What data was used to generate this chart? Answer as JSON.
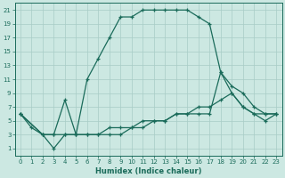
{
  "xlabel": "Humidex (Indice chaleur)",
  "background_color": "#cce8e2",
  "grid_color": "#a8ccc6",
  "line_color": "#1a6b5a",
  "xlim": [
    -0.5,
    23.5
  ],
  "ylim": [
    0,
    22
  ],
  "xticks": [
    0,
    1,
    2,
    3,
    4,
    5,
    6,
    7,
    8,
    9,
    10,
    11,
    12,
    13,
    14,
    15,
    16,
    17,
    18,
    19,
    20,
    21,
    22,
    23
  ],
  "yticks": [
    1,
    3,
    5,
    7,
    9,
    11,
    13,
    15,
    17,
    19,
    21
  ],
  "curve1_x": [
    0,
    1,
    2,
    3,
    4,
    5,
    6,
    7,
    8,
    9,
    10,
    11,
    12,
    13,
    14,
    15,
    16,
    17,
    18,
    19,
    20,
    21,
    22,
    23
  ],
  "curve1_y": [
    6,
    4,
    3,
    3,
    8,
    3,
    11,
    14,
    17,
    20,
    20,
    21,
    21,
    21,
    21,
    21,
    20,
    19,
    12,
    10,
    9,
    7,
    6,
    6
  ],
  "curve2_x": [
    0,
    2,
    3,
    4,
    5,
    6,
    7,
    8,
    9,
    10,
    11,
    12,
    13,
    14,
    15,
    16,
    17,
    18,
    19,
    20,
    21,
    22,
    23
  ],
  "curve2_y": [
    6,
    3,
    3,
    3,
    3,
    3,
    3,
    3,
    3,
    4,
    4,
    5,
    5,
    6,
    6,
    7,
    7,
    8,
    9,
    7,
    6,
    6,
    6
  ],
  "curve3_x": [
    0,
    2,
    3,
    4,
    5,
    6,
    7,
    8,
    9,
    10,
    11,
    12,
    13,
    14,
    15,
    16,
    17,
    18,
    19,
    20,
    21,
    22,
    23
  ],
  "curve3_y": [
    6,
    3,
    1,
    3,
    3,
    3,
    3,
    4,
    4,
    4,
    5,
    5,
    5,
    6,
    6,
    6,
    6,
    12,
    9,
    7,
    6,
    5,
    6
  ]
}
